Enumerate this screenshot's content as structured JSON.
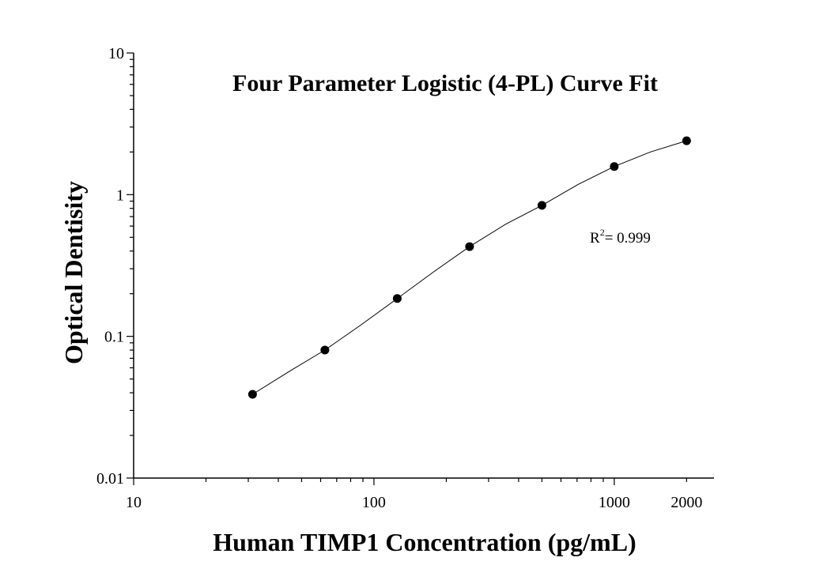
{
  "chart_data": {
    "type": "scatter",
    "title": "Four Parameter Logistic (4-PL) Curve Fit",
    "xlabel": "Human TIMP1 Concentration (pg/mL)",
    "ylabel": "Optical Dentisity",
    "x_scale": "log",
    "y_scale": "log",
    "xlim": [
      10,
      2600
    ],
    "ylim": [
      0.01,
      10
    ],
    "x_ticks": [
      10,
      100,
      1000,
      2000
    ],
    "x_tick_labels": [
      "10",
      "100",
      "1000",
      "2000"
    ],
    "y_ticks": [
      0.01,
      0.1,
      1,
      10
    ],
    "y_tick_labels": [
      "0.01",
      "0.1",
      "1",
      "10"
    ],
    "grid": false,
    "series": [
      {
        "type": "scatter",
        "marker": "circle",
        "color": "#000000",
        "x": [
          31.25,
          62.5,
          125,
          250,
          500,
          1000,
          2000
        ],
        "y": [
          0.039,
          0.08,
          0.185,
          0.43,
          0.84,
          1.58,
          2.4
        ]
      },
      {
        "type": "line",
        "fit": "4-PL",
        "color": "#000000",
        "x": [
          31.25,
          44,
          62.5,
          88,
          125,
          177,
          250,
          354,
          500,
          707,
          1000,
          1414,
          2000
        ],
        "y": [
          0.039,
          0.056,
          0.08,
          0.12,
          0.185,
          0.285,
          0.43,
          0.62,
          0.84,
          1.18,
          1.58,
          2.0,
          2.4
        ]
      }
    ],
    "annotation": {
      "text_base": "R",
      "superscript": "2",
      "text_rest": "= 0.999",
      "position": "right"
    }
  }
}
